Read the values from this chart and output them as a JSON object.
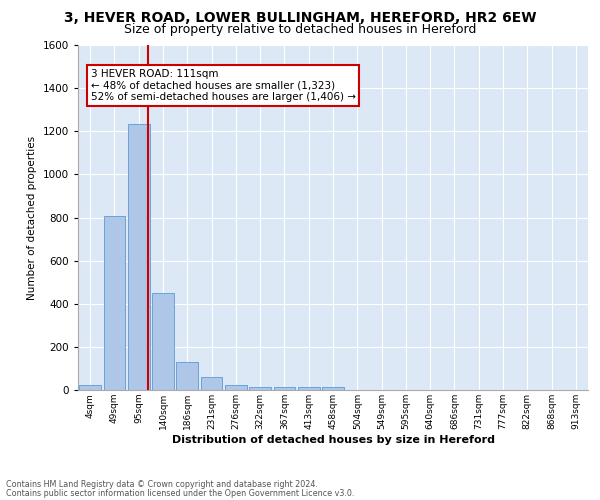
{
  "title1": "3, HEVER ROAD, LOWER BULLINGHAM, HEREFORD, HR2 6EW",
  "title2": "Size of property relative to detached houses in Hereford",
  "xlabel": "Distribution of detached houses by size in Hereford",
  "ylabel": "Number of detached properties",
  "footnote1": "Contains HM Land Registry data © Crown copyright and database right 2024.",
  "footnote2": "Contains public sector information licensed under the Open Government Licence v3.0.",
  "bin_labels": [
    "4sqm",
    "49sqm",
    "95sqm",
    "140sqm",
    "186sqm",
    "231sqm",
    "276sqm",
    "322sqm",
    "367sqm",
    "413sqm",
    "458sqm",
    "504sqm",
    "549sqm",
    "595sqm",
    "640sqm",
    "686sqm",
    "731sqm",
    "777sqm",
    "822sqm",
    "868sqm",
    "913sqm"
  ],
  "bar_heights": [
    25,
    805,
    1235,
    450,
    130,
    60,
    25,
    15,
    15,
    15,
    15,
    0,
    0,
    0,
    0,
    0,
    0,
    0,
    0,
    0,
    0
  ],
  "bar_color": "#aec6e8",
  "bar_edgecolor": "#5b9bd5",
  "property_line_x": 2.375,
  "property_line_color": "#cc0000",
  "ylim": [
    0,
    1600
  ],
  "yticks": [
    0,
    200,
    400,
    600,
    800,
    1000,
    1200,
    1400,
    1600
  ],
  "annotation_text": "3 HEVER ROAD: 111sqm\n← 48% of detached houses are smaller (1,323)\n52% of semi-detached houses are larger (1,406) →",
  "annotation_box_edgecolor": "#cc0000",
  "background_color": "#dce8f5",
  "grid_color": "#ffffff",
  "title1_fontsize": 10,
  "title2_fontsize": 9
}
